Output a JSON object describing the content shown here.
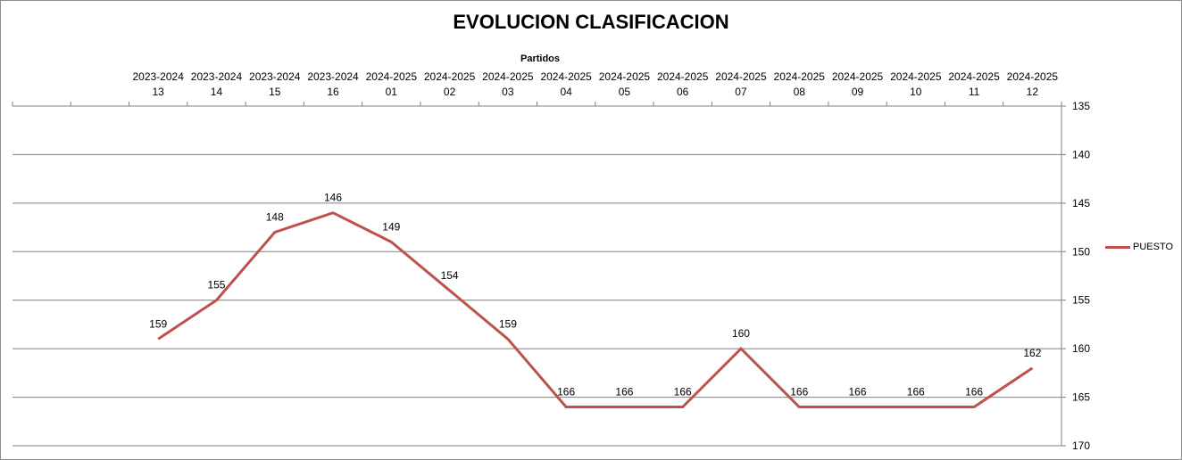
{
  "chart_data": {
    "type": "line",
    "title": "EVOLUCION CLASIFICACION",
    "xlabel": "Partidos",
    "ylabel": "",
    "x_axis_position": "top",
    "y_axis_position": "right",
    "y_inverted": true,
    "ylim": [
      135,
      170
    ],
    "yticks": [
      135,
      140,
      145,
      150,
      155,
      160,
      165,
      170
    ],
    "grid": true,
    "legend": "right",
    "categories": [
      {
        "line1": "",
        "line2": ""
      },
      {
        "line1": "",
        "line2": ""
      },
      {
        "line1": "2023-2024",
        "line2": "13"
      },
      {
        "line1": "2023-2024",
        "line2": "14"
      },
      {
        "line1": "2023-2024",
        "line2": "15"
      },
      {
        "line1": "2023-2024",
        "line2": "16"
      },
      {
        "line1": "2024-2025",
        "line2": "01"
      },
      {
        "line1": "2024-2025",
        "line2": "02"
      },
      {
        "line1": "2024-2025",
        "line2": "03"
      },
      {
        "line1": "2024-2025",
        "line2": "04"
      },
      {
        "line1": "2024-2025",
        "line2": "05"
      },
      {
        "line1": "2024-2025",
        "line2": "06"
      },
      {
        "line1": "2024-2025",
        "line2": "07"
      },
      {
        "line1": "2024-2025",
        "line2": "08"
      },
      {
        "line1": "2024-2025",
        "line2": "09"
      },
      {
        "line1": "2024-2025",
        "line2": "10"
      },
      {
        "line1": "2024-2025",
        "line2": "11"
      },
      {
        "line1": "2024-2025",
        "line2": "12"
      }
    ],
    "series": [
      {
        "name": "PUESTO",
        "color": "#c0504d",
        "values": [
          null,
          null,
          159,
          155,
          148,
          146,
          149,
          154,
          159,
          166,
          166,
          166,
          160,
          166,
          166,
          166,
          166,
          162
        ]
      }
    ]
  }
}
